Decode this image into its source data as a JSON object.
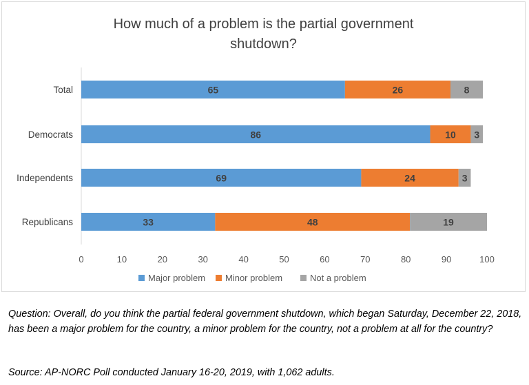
{
  "chart_data": {
    "type": "bar",
    "orientation": "horizontal",
    "stacked": true,
    "title_lines": [
      "How much of a problem is the partial government",
      "shutdown?"
    ],
    "categories": [
      "Total",
      "Democrats",
      "Independents",
      "Republicans"
    ],
    "series": [
      {
        "name": "Major problem",
        "color": "#5b9bd5",
        "values": [
          65,
          86,
          69,
          33
        ]
      },
      {
        "name": "Minor problem",
        "color": "#ed7d31",
        "values": [
          26,
          10,
          24,
          48
        ]
      },
      {
        "name": "Not a problem",
        "color": "#a5a5a5",
        "values": [
          8,
          3,
          3,
          19
        ]
      }
    ],
    "xlim": [
      0,
      100
    ],
    "xticks": [
      0,
      10,
      20,
      30,
      40,
      50,
      60,
      70,
      80,
      90,
      100
    ],
    "grid": false,
    "legend_position": "bottom"
  },
  "notes": {
    "question": "Question: Overall, do you think the partial federal government shutdown, which began Saturday, December 22, 2018, has been a major problem for the country, a minor problem for the country, not a problem at all for the country?",
    "source": "Source: AP-NORC Poll conducted January 16-20, 2019, with 1,062 adults."
  }
}
